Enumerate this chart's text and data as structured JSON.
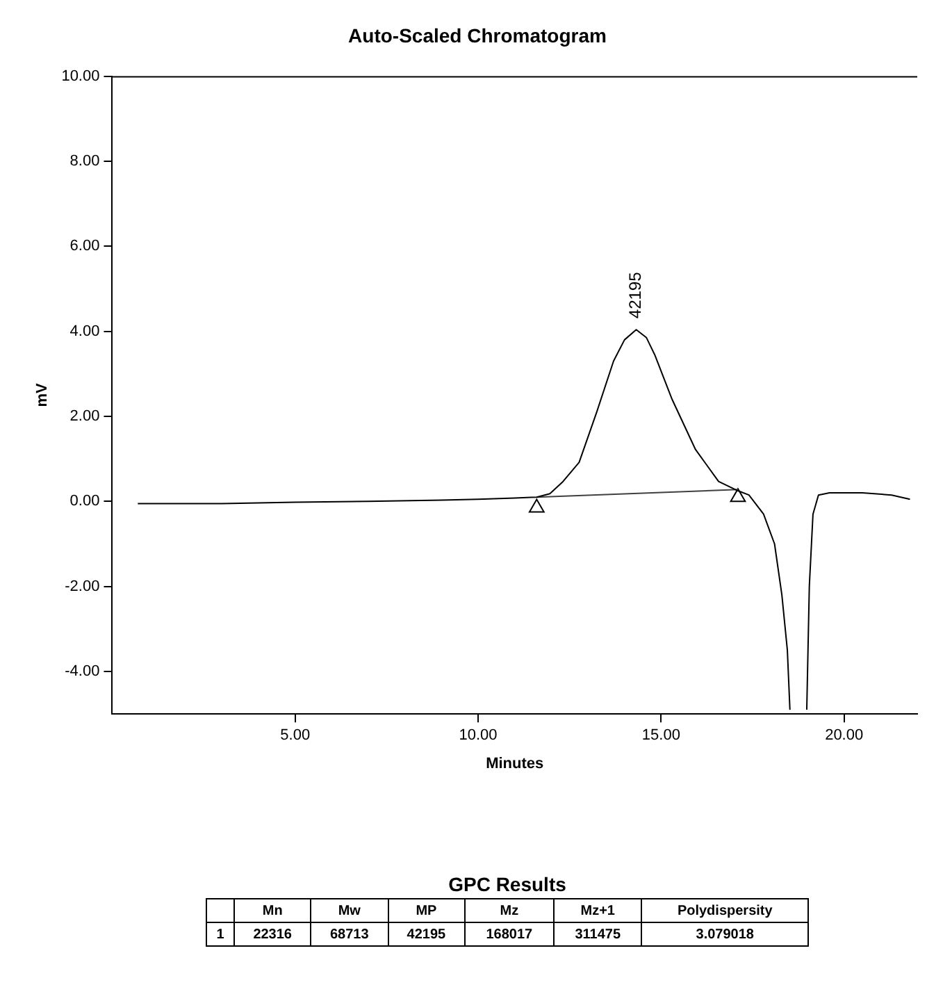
{
  "chart_data": [
    {
      "type": "line",
      "title": "Auto-Scaled Chromatogram",
      "xlabel": "Minutes",
      "ylabel": "mV",
      "xlim": [
        0,
        22
      ],
      "xticks": [
        {
          "value": 5,
          "label": "5.00"
        },
        {
          "value": 10,
          "label": "10.00"
        },
        {
          "value": 15,
          "label": "15.00"
        },
        {
          "value": 20,
          "label": "20.00"
        }
      ],
      "ylim": [
        -5,
        10
      ],
      "yticks": [
        {
          "value": -4,
          "label": "-4.00"
        },
        {
          "value": -2,
          "label": "-2.00"
        },
        {
          "value": 0,
          "label": "0.00"
        },
        {
          "value": 2,
          "label": "2.00"
        },
        {
          "value": 4,
          "label": "4.00"
        },
        {
          "value": 6,
          "label": "6.00"
        },
        {
          "value": 8,
          "label": "8.00"
        },
        {
          "value": 10,
          "label": "10.00"
        }
      ],
      "grid": false,
      "legend": false,
      "series": [
        {
          "type": "line",
          "color": "#000000",
          "x": [
            0.7,
            3,
            5,
            7,
            9,
            10,
            11,
            11.6,
            11.96,
            12.3,
            12.76,
            13.24,
            13.7,
            14.0,
            14.32,
            14.6,
            14.83,
            15.3,
            15.94,
            16.57,
            17.1,
            17.4,
            17.8,
            18.1,
            18.3,
            18.45,
            18.52,
            18.75,
            18.98,
            19.05,
            19.15,
            19.3,
            19.6,
            20.5,
            21.3,
            21.8
          ],
          "values": [
            -0.05,
            -0.05,
            -0.02,
            0,
            0.03,
            0.05,
            0.08,
            0.1,
            0.18,
            0.45,
            0.92,
            2.1,
            3.3,
            3.8,
            4.04,
            3.85,
            3.44,
            2.4,
            1.22,
            0.47,
            0.25,
            0.15,
            -0.3,
            -1,
            -2.2,
            -3.5,
            -4.9,
            null,
            -4.9,
            -2,
            -0.3,
            0.15,
            0.2,
            0.2,
            0.15,
            0.05
          ]
        },
        {
          "type": "line",
          "color": "#404040",
          "x": [
            11.6,
            17.1
          ],
          "values": [
            0.1,
            0.28
          ]
        },
        {
          "type": "scatter",
          "marker": "triangle",
          "color": "#000000",
          "x": [
            11.6,
            17.1
          ],
          "values": [
            -0.15,
            0.1
          ]
        }
      ],
      "annotations": [
        {
          "text": "42195",
          "x": 14.32,
          "y": 4.04
        }
      ]
    },
    {
      "type": "other",
      "title": "GPC Results",
      "categories": [
        "Mn",
        "Mw",
        "MP",
        "Mz",
        "Mz+1",
        "Polydispersity"
      ],
      "values": [
        22316,
        68713,
        42195,
        168017,
        311475,
        3.079018
      ],
      "data_labels": true,
      "annotations": [
        "1"
      ]
    }
  ]
}
